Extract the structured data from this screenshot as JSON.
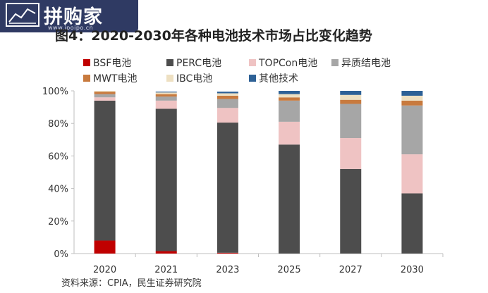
{
  "watermark": {
    "text": "拼购家",
    "url": "www.ipoipo.cn"
  },
  "title": "图4：2020-2030年各种电池技术市场占比变化趋势",
  "source": "资料来源：CPIA，民生证券研究院",
  "chart_data": {
    "type": "bar",
    "stacked": true,
    "categories": [
      "2020",
      "2021",
      "2023",
      "2025",
      "2027",
      "2030"
    ],
    "ylim": [
      0,
      100
    ],
    "yticks": [
      "0%",
      "20%",
      "40%",
      "60%",
      "80%",
      "100%"
    ],
    "legend_position": "top",
    "series": [
      {
        "name": "BSF电池",
        "color": "#c00000",
        "values": [
          8,
          1.5,
          0.5,
          0,
          0,
          0
        ]
      },
      {
        "name": "PERC电池",
        "color": "#4d4d4d",
        "values": [
          86,
          87.5,
          80,
          67,
          52,
          37
        ]
      },
      {
        "name": "TOPCon电池",
        "color": "#efc3c3",
        "values": [
          2,
          5,
          9,
          14,
          19,
          24
        ]
      },
      {
        "name": "异质结电池",
        "color": "#a6a6a6",
        "values": [
          2,
          2.5,
          5.5,
          13,
          21,
          30
        ]
      },
      {
        "name": "MWT电池",
        "color": "#c87a3e",
        "values": [
          1.5,
          1.5,
          2,
          2,
          2.5,
          3
        ]
      },
      {
        "name": "IBC电池",
        "color": "#eee0c2",
        "values": [
          0.5,
          1,
          1.5,
          2,
          3,
          3
        ]
      },
      {
        "name": "其他技术",
        "color": "#2e6196",
        "values": [
          0,
          0.5,
          1,
          2,
          2.5,
          3
        ]
      }
    ]
  }
}
